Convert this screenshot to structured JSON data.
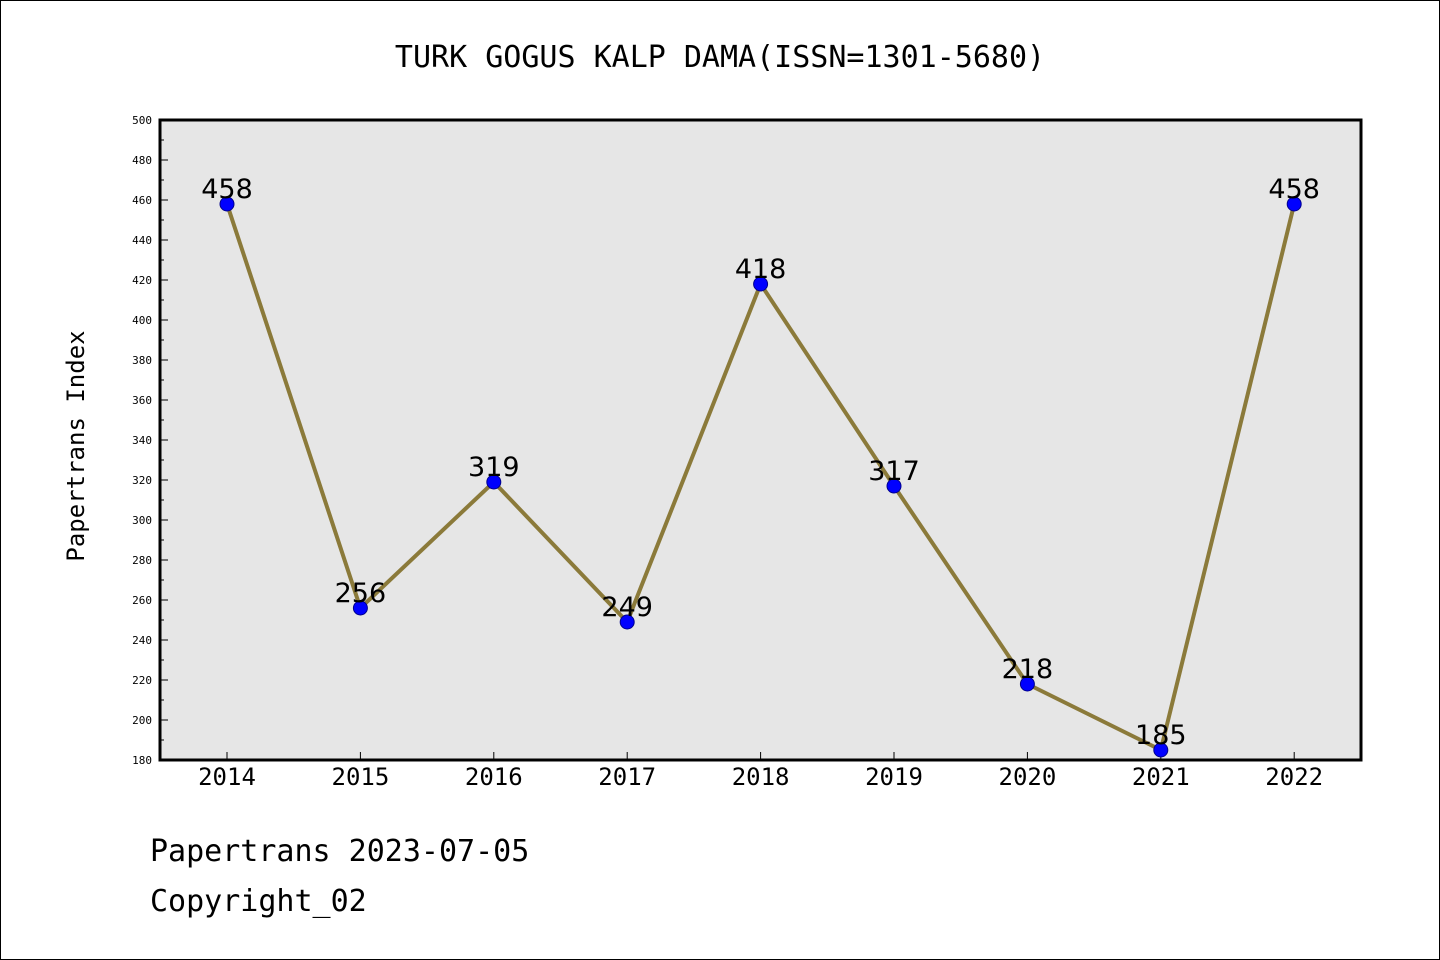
{
  "chart_data": {
    "type": "line",
    "title": "TURK GOGUS KALP DAMA(ISSN=1301-5680)",
    "xlabel": "",
    "ylabel": "Papertrans Index",
    "categories": [
      "2014",
      "2015",
      "2016",
      "2017",
      "2018",
      "2019",
      "2020",
      "2021",
      "2022"
    ],
    "values": [
      458,
      256,
      319,
      249,
      418,
      317,
      218,
      185,
      458
    ],
    "data_labels": [
      "458",
      "256",
      "319",
      "249",
      "418",
      "317",
      "218",
      "185",
      "458"
    ],
    "ylim": [
      180,
      500
    ],
    "y_ticks": [
      "180",
      "200",
      "220",
      "240",
      "260",
      "280",
      "300",
      "320",
      "340",
      "360",
      "380",
      "400",
      "420",
      "440",
      "460",
      "480",
      "500"
    ],
    "grid": false,
    "legend": "none",
    "colors": {
      "line": "#8b7a3a",
      "marker_fill": "#0000ff",
      "marker_edge": "#00008b",
      "plot_background": "#e6e6e6"
    }
  },
  "footer": {
    "line1": "Papertrans 2023-07-05",
    "line2": "Copyright_02"
  }
}
